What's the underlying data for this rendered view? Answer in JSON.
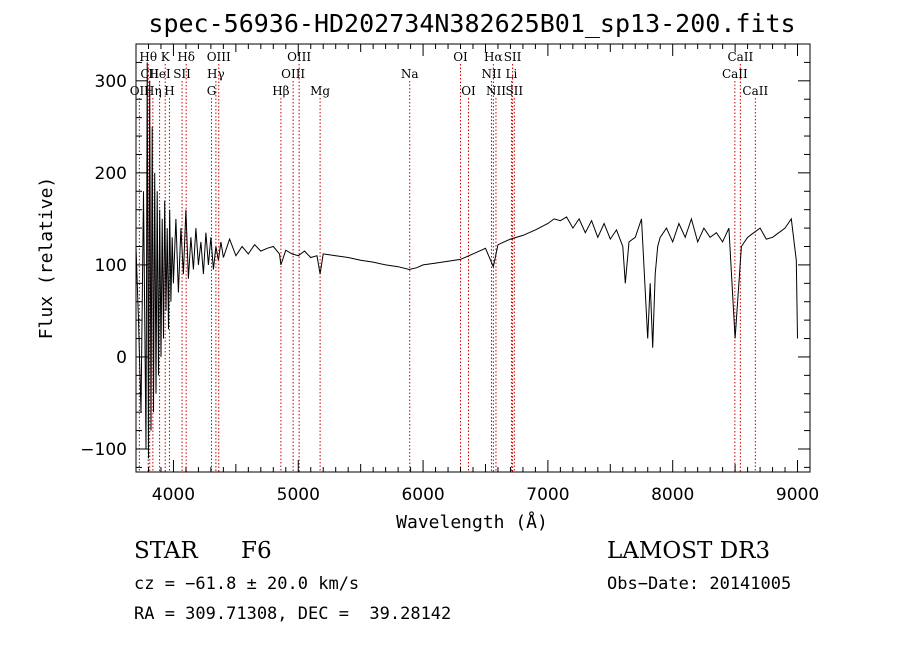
{
  "chart_data": {
    "type": "line",
    "title": "spec-56936-HD202734N382625B01_sp13-200.fits",
    "xlabel": "Wavelength (Å)",
    "ylabel": "Flux (relative)",
    "xlim": [
      3700,
      9100
    ],
    "ylim": [
      -125,
      340
    ],
    "xticks": [
      4000,
      5000,
      6000,
      7000,
      8000,
      9000
    ],
    "yticks": [
      -100,
      0,
      100,
      200,
      300
    ],
    "series": [
      {
        "name": "spectrum",
        "x": [
          3700,
          3720,
          3740,
          3760,
          3780,
          3790,
          3800,
          3810,
          3820,
          3830,
          3840,
          3850,
          3860,
          3870,
          3880,
          3890,
          3900,
          3910,
          3920,
          3930,
          3940,
          3950,
          3960,
          3970,
          3980,
          3990,
          4000,
          4020,
          4040,
          4060,
          4080,
          4100,
          4120,
          4140,
          4160,
          4180,
          4200,
          4220,
          4240,
          4260,
          4280,
          4300,
          4320,
          4340,
          4360,
          4380,
          4400,
          4450,
          4500,
          4550,
          4600,
          4650,
          4700,
          4750,
          4800,
          4850,
          4861,
          4900,
          4950,
          5000,
          5050,
          5100,
          5150,
          5175,
          5200,
          5300,
          5400,
          5500,
          5600,
          5700,
          5800,
          5890,
          5950,
          6000,
          6100,
          6200,
          6300,
          6400,
          6500,
          6563,
          6600,
          6700,
          6800,
          6900,
          7000,
          7050,
          7100,
          7150,
          7200,
          7250,
          7300,
          7350,
          7400,
          7450,
          7500,
          7550,
          7600,
          7620,
          7650,
          7700,
          7750,
          7800,
          7820,
          7840,
          7860,
          7880,
          7900,
          7950,
          8000,
          8050,
          8100,
          8150,
          8200,
          8250,
          8300,
          8350,
          8400,
          8450,
          8500,
          8550,
          8600,
          8650,
          8700,
          8750,
          8800,
          8850,
          8900,
          8950,
          8990,
          9000
        ],
        "values": [
          120,
          40,
          -60,
          180,
          -100,
          320,
          -110,
          300,
          -80,
          250,
          -60,
          200,
          -40,
          180,
          -20,
          160,
          0,
          150,
          20,
          170,
          50,
          140,
          30,
          160,
          60,
          130,
          80,
          150,
          70,
          140,
          90,
          160,
          85,
          130,
          95,
          140,
          100,
          125,
          90,
          135,
          100,
          130,
          95,
          120,
          105,
          125,
          108,
          128,
          110,
          120,
          112,
          122,
          115,
          118,
          120,
          112,
          100,
          116,
          112,
          110,
          115,
          108,
          110,
          90,
          112,
          110,
          108,
          105,
          103,
          100,
          98,
          95,
          97,
          100,
          102,
          104,
          106,
          112,
          118,
          98,
          122,
          128,
          132,
          138,
          145,
          150,
          148,
          152,
          140,
          150,
          135,
          148,
          130,
          145,
          128,
          138,
          120,
          80,
          125,
          130,
          150,
          20,
          80,
          10,
          90,
          120,
          130,
          140,
          125,
          145,
          130,
          150,
          125,
          140,
          130,
          135,
          125,
          140,
          20,
          120,
          130,
          135,
          140,
          128,
          130,
          135,
          140,
          150,
          105,
          20
        ]
      }
    ],
    "lines": [
      {
        "label": "Hθ",
        "x": 3798,
        "row": 1
      },
      {
        "label": "CII",
        "x": 3810,
        "row": 2
      },
      {
        "label": "OII",
        "x": 3727,
        "row": 3
      },
      {
        "label": "K",
        "x": 3934,
        "row": 1
      },
      {
        "label": "HeI",
        "x": 3889,
        "row": 2
      },
      {
        "label": "Hη",
        "x": 3835,
        "row": 3
      },
      {
        "label": "Hδ",
        "x": 4102,
        "row": 1
      },
      {
        "label": "SII",
        "x": 4069,
        "row": 2
      },
      {
        "label": "H",
        "x": 3968,
        "row": 3
      },
      {
        "label": "OIII",
        "x": 4363,
        "row": 1
      },
      {
        "label": "Hγ",
        "x": 4340,
        "row": 2
      },
      {
        "label": "G",
        "x": 4305,
        "row": 3
      },
      {
        "label": "OIII",
        "x": 5007,
        "row": 1
      },
      {
        "label": "OIII",
        "x": 4959,
        "row": 2
      },
      {
        "label": "Hβ",
        "x": 4861,
        "row": 3
      },
      {
        "label": "Mg",
        "x": 5175,
        "row": 3
      },
      {
        "label": "Na",
        "x": 5893,
        "row": 2
      },
      {
        "label": "OI",
        "x": 6300,
        "row": 1
      },
      {
        "label": "OI",
        "x": 6364,
        "row": 3
      },
      {
        "label": "Hα",
        "x": 6563,
        "row": 1
      },
      {
        "label": "NII",
        "x": 6548,
        "row": 2
      },
      {
        "label": "NII",
        "x": 6584,
        "row": 3
      },
      {
        "label": "SII",
        "x": 6717,
        "row": 1
      },
      {
        "label": "Li",
        "x": 6708,
        "row": 2
      },
      {
        "label": "SII",
        "x": 6731,
        "row": 3
      },
      {
        "label": "CaII",
        "x": 8542,
        "row": 1
      },
      {
        "label": "CaII",
        "x": 8498,
        "row": 2
      },
      {
        "label": "CaII",
        "x": 8662,
        "row": 3
      }
    ],
    "colors": {
      "spectrum": "#000000",
      "lines": "#cc0000",
      "axes": "#000000"
    }
  },
  "info": {
    "object_class": "STAR",
    "subclass": "F6",
    "survey": "LAMOST DR3",
    "redshift": "cz = −61.8 ± 20.0 km/s",
    "obs_date": "Obs−Date: 20141005",
    "coords": "RA = 309.71308, DEC =  39.28142"
  }
}
